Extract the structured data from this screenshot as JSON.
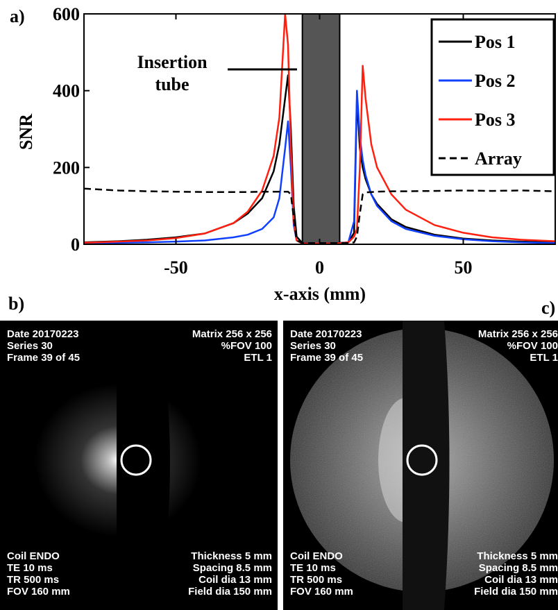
{
  "chart_data": {
    "type": "line",
    "panel_label": "a)",
    "ylabel": "SNR",
    "xlabel": "x-axis (mm)",
    "xlim": [
      -82,
      82
    ],
    "ylim": [
      0,
      600
    ],
    "xticks": [
      -50,
      0,
      50
    ],
    "yticks": [
      0,
      200,
      400,
      600
    ],
    "legend": "upper right",
    "shaded_span": [
      -6,
      7
    ],
    "annotation": [
      "Insertion",
      "tube"
    ],
    "x": [
      -82,
      -70,
      -60,
      -50,
      -40,
      -30,
      -25,
      -20,
      -16,
      -14,
      -12,
      -11,
      -10,
      -9,
      -8,
      -6,
      0,
      6,
      10,
      12,
      13,
      14,
      15,
      16,
      18,
      20,
      25,
      30,
      40,
      50,
      60,
      70,
      82
    ],
    "series": [
      {
        "name": "Pos 1",
        "color": "#000000",
        "values": [
          5,
          8,
          12,
          18,
          28,
          55,
          80,
          120,
          190,
          260,
          380,
          440,
          300,
          100,
          20,
          3,
          2,
          3,
          5,
          30,
          380,
          250,
          200,
          170,
          130,
          105,
          65,
          45,
          25,
          15,
          10,
          7,
          5
        ]
      },
      {
        "name": "Pos 2",
        "color": "#1040ff",
        "values": [
          3,
          4,
          5,
          7,
          10,
          18,
          25,
          40,
          70,
          120,
          250,
          320,
          200,
          50,
          10,
          2,
          2,
          2,
          5,
          60,
          400,
          280,
          220,
          180,
          130,
          100,
          60,
          40,
          22,
          13,
          8,
          5,
          3
        ]
      },
      {
        "name": "Pos 3",
        "color": "#ff2010",
        "values": [
          4,
          7,
          10,
          16,
          28,
          55,
          85,
          140,
          230,
          330,
          600,
          520,
          250,
          60,
          10,
          2,
          2,
          2,
          5,
          20,
          40,
          200,
          465,
          380,
          260,
          200,
          130,
          90,
          50,
          30,
          18,
          12,
          8
        ]
      },
      {
        "name": "Array",
        "color": "#000000",
        "dashed": true,
        "values": [
          145,
          140,
          138,
          137,
          136,
          136,
          136,
          137,
          137,
          137,
          137,
          137,
          130,
          70,
          10,
          3,
          3,
          3,
          3,
          5,
          20,
          80,
          130,
          135,
          136,
          137,
          138,
          138,
          139,
          140,
          139,
          140,
          138
        ]
      }
    ]
  },
  "images": [
    {
      "label": "b)",
      "top_left": [
        "Date 20170223",
        "Series 30",
        "Frame 39 of 45"
      ],
      "top_right": [
        "Matrix 256 x 256",
        "%FOV 100",
        "ETL 1"
      ],
      "bottom_left": [
        "Coil ENDO",
        "TE 10 ms",
        "TR 500 ms",
        "FOV 160 mm"
      ],
      "bottom_right": [
        "Thickness 5 mm",
        "Spacing 8.5 mm",
        "Coil dia 13 mm",
        "Field dia 150 mm"
      ]
    },
    {
      "label": "c)",
      "top_left": [
        "Date 20170223",
        "Series 30",
        "Frame 39 of 45"
      ],
      "top_right": [
        "Matrix 256 x 256",
        "%FOV 100",
        "ETL 1"
      ],
      "bottom_left": [
        "Coil ENDO",
        "TE 10 ms",
        "TR 500 ms",
        "FOV 160 mm"
      ],
      "bottom_right": [
        "Thickness 5 mm",
        "Spacing 8.5 mm",
        "Coil dia 13 mm",
        "Field dia 150 mm"
      ]
    }
  ]
}
